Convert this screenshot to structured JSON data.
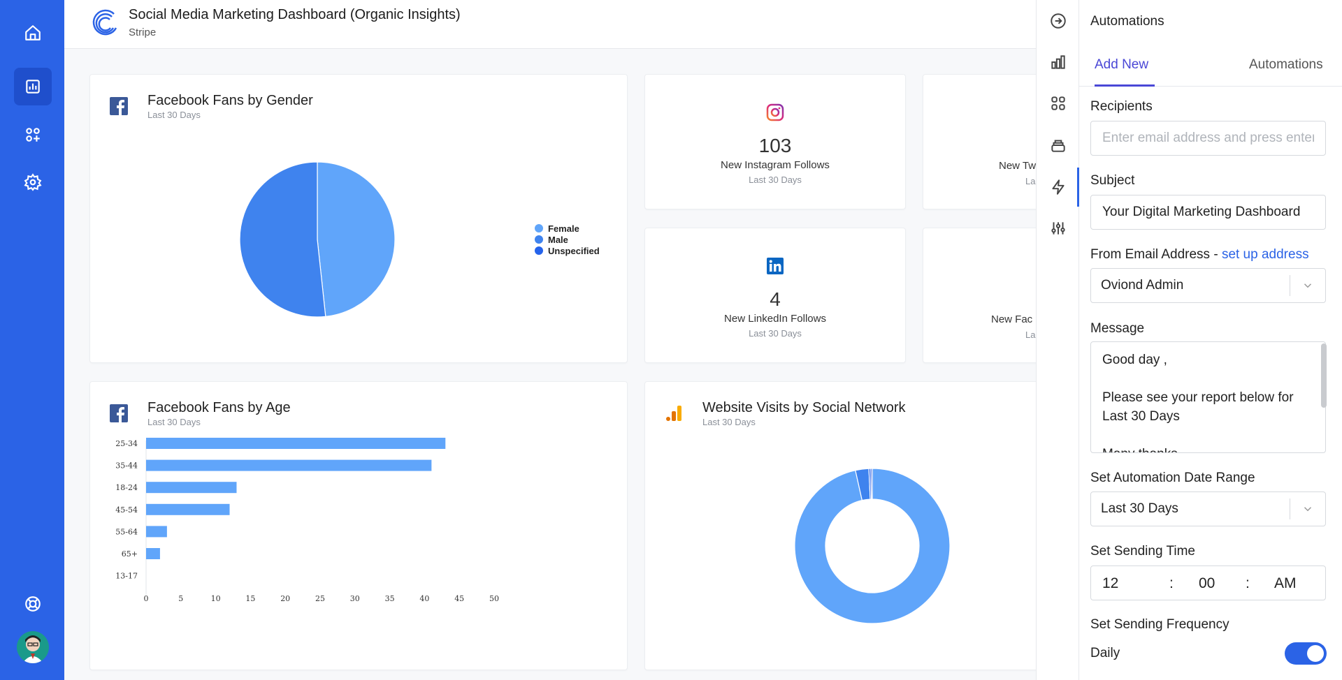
{
  "header": {
    "title": "Social Media Marketing Dashboard (Organic Insights)",
    "subtitle": "Stripe"
  },
  "nav": {
    "items": [
      "home-icon",
      "report-icon",
      "apps-add-icon",
      "gear-icon"
    ],
    "bottom": [
      "help-icon",
      "avatar"
    ]
  },
  "cards": {
    "gender": {
      "title": "Facebook Fans by Gender",
      "subtitle": "Last 30 Days",
      "legend": [
        {
          "label": "Female",
          "color": "#60a5fa"
        },
        {
          "label": "Male",
          "color": "#3f83ee"
        },
        {
          "label": "Unspecified",
          "color": "#2563eb"
        }
      ]
    },
    "instagram": {
      "value": "103",
      "label": "New Instagram Follows",
      "sub": "Last 30 Days"
    },
    "twitter": {
      "label": "New Tw",
      "sub": "La"
    },
    "linkedin": {
      "value": "4",
      "label": "New LinkedIn Follows",
      "sub": "Last 30 Days"
    },
    "facebook": {
      "label": "New Fac",
      "sub": "La"
    },
    "age": {
      "title": "Facebook Fans by Age",
      "subtitle": "Last 30 Days"
    },
    "visits": {
      "title": "Website Visits by Social Network",
      "subtitle": "Last 30 Days"
    }
  },
  "chart_data": [
    {
      "type": "pie",
      "title": "Facebook Fans by Gender",
      "categories": [
        "Female",
        "Male",
        "Unspecified"
      ],
      "values": [
        48.3,
        51.7,
        0
      ],
      "colors": [
        "#60a5fa",
        "#3f83ee",
        "#2563eb"
      ],
      "legend_position": "right"
    },
    {
      "type": "bar",
      "orientation": "horizontal",
      "title": "Facebook Fans by Age",
      "categories": [
        "25-34",
        "35-44",
        "18-24",
        "45-54",
        "55-64",
        "65+",
        "13-17"
      ],
      "values": [
        43,
        41,
        13,
        12,
        3,
        2,
        0
      ],
      "xlim": [
        0,
        50
      ],
      "xticks": [
        0,
        5,
        10,
        15,
        20,
        25,
        30,
        35,
        40,
        45,
        50
      ],
      "color": "#60a5fa",
      "grid": false
    },
    {
      "type": "pie",
      "variant": "donut",
      "title": "Website Visits by Social Network",
      "values": [
        96.5,
        2.8,
        0.4,
        0.3
      ],
      "colors": [
        "#60a5fa",
        "#3f83ee",
        "#2563eb",
        "#1d4ed8"
      ]
    }
  ],
  "strip": {
    "items": [
      "arrow-right-circle-icon",
      "bar-chart-icon",
      "grid-icon",
      "layers-icon",
      "lightning-icon",
      "sliders-icon"
    ]
  },
  "panel": {
    "title": "Automations",
    "tabs": [
      {
        "label": "Add New",
        "active": true
      },
      {
        "label": "Automations",
        "active": false
      }
    ],
    "recipients": {
      "label": "Recipients",
      "placeholder": "Enter email address and press enter",
      "value": ""
    },
    "subject": {
      "label": "Subject",
      "value": "Your Digital Marketing Dashboard"
    },
    "from": {
      "label": "From Email Address - ",
      "link": "set up address",
      "value": "Oviond Admin"
    },
    "message": {
      "label": "Message",
      "lines": [
        "Good day ,",
        "Please see your report below for Last 30 Days",
        "Many thanks"
      ]
    },
    "date_range": {
      "label": "Set Automation Date Range",
      "value": "Last 30 Days"
    },
    "time": {
      "label": "Set Sending Time",
      "hour": "12",
      "minute": "00",
      "period": "AM",
      "sep": ":"
    },
    "frequency": {
      "label": "Set Sending Frequency",
      "value": "Daily",
      "enabled": true
    }
  }
}
